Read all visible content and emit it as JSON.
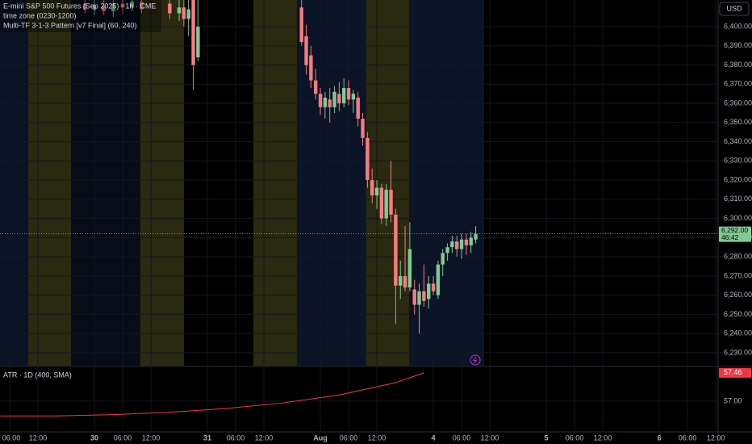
{
  "chart_data": [
    {
      "type": "candlestick",
      "title": "E-mini S&P 500 Futures (Sep 2025) · 1h · CME",
      "annotations": [
        "time zone (0230-1200)",
        "Multi-TF 3-1-3 Pattern [v7 Final] (60, 240)"
      ],
      "currency": "USD",
      "last_price": {
        "value": 6292,
        "label": "6,292.00"
      },
      "countdown": "46:42",
      "up_color": "#81c995",
      "down_color": "#f77c80",
      "grid": true,
      "xlim": [
        3.94,
        156.5
      ],
      "xticks": [
        {
          "value": 6,
          "label": "06:00"
        },
        {
          "value": 12,
          "label": "12:00"
        },
        {
          "value": 24,
          "label": "30"
        },
        {
          "value": 30,
          "label": "06:00"
        },
        {
          "value": 36,
          "label": "12:00"
        },
        {
          "value": 48,
          "label": "31"
        },
        {
          "value": 54,
          "label": "06:00"
        },
        {
          "value": 60,
          "label": "12:00"
        },
        {
          "value": 72,
          "label": "Aug"
        },
        {
          "value": 78,
          "label": "06:00"
        },
        {
          "value": 84,
          "label": "12:00"
        },
        {
          "value": 96,
          "label": "4"
        },
        {
          "value": 102,
          "label": "06:00"
        },
        {
          "value": 108,
          "label": "12:00"
        },
        {
          "value": 120,
          "label": "5"
        },
        {
          "value": 126,
          "label": "06:00"
        },
        {
          "value": 132,
          "label": "12:00"
        },
        {
          "value": 144,
          "label": "6"
        },
        {
          "value": 150,
          "label": "06:00"
        },
        {
          "value": 156,
          "label": "12:00"
        }
      ],
      "ylim": [
        6223.23,
        6413.89
      ],
      "yticks": [
        {
          "value": 6230,
          "label": "6,230.00"
        },
        {
          "value": 6240,
          "label": "6,240.00"
        },
        {
          "value": 6250,
          "label": "6,250.00"
        },
        {
          "value": 6260,
          "label": "6,260.00"
        },
        {
          "value": 6270,
          "label": "6,270.00"
        },
        {
          "value": 6280,
          "label": "6,280.00"
        },
        {
          "value": 6290,
          "label": "6,290.00"
        },
        {
          "value": 6300,
          "label": "6,300.00"
        },
        {
          "value": 6310,
          "label": "6,310.00"
        },
        {
          "value": 6320,
          "label": "6,320.00"
        },
        {
          "value": 6330,
          "label": "6,330.00"
        },
        {
          "value": 6340,
          "label": "6,340.00"
        },
        {
          "value": 6350,
          "label": "6,350.00"
        },
        {
          "value": 6360,
          "label": "6,360.00"
        },
        {
          "value": 6370,
          "label": "6,370.00"
        },
        {
          "value": 6380,
          "label": "6,380.00"
        },
        {
          "value": 6390,
          "label": "6,390.00"
        },
        {
          "value": 6400,
          "label": "6,400.00"
        }
      ],
      "x": [
        22,
        24,
        26,
        28,
        30,
        32,
        34,
        40,
        42,
        43,
        44,
        45,
        46,
        68,
        69,
        70,
        71,
        72,
        73,
        74,
        75,
        76,
        77,
        78,
        79,
        80,
        81,
        82,
        83,
        84,
        85,
        86,
        87,
        88,
        89,
        90,
        91,
        92,
        93,
        94,
        95,
        96,
        97,
        98,
        99,
        100,
        101,
        102,
        103,
        104,
        105
      ],
      "open": [
        6412,
        6409,
        6411,
        6408,
        6412,
        6410,
        6413,
        6412,
        6407,
        6410,
        6404,
        6414,
        6384,
        6410,
        6395,
        6385,
        6372,
        6365,
        6358,
        6362,
        6358,
        6365,
        6360,
        6368,
        6362,
        6363,
        6352,
        6342,
        6320,
        6312,
        6316,
        6300,
        6315,
        6302,
        6265,
        6270,
        6264,
        6263,
        6255,
        6262,
        6258,
        6266,
        6260,
        6276,
        6282,
        6285,
        6288,
        6284,
        6289,
        6286,
        6289
      ],
      "high": [
        6416,
        6414,
        6415,
        6416,
        6416,
        6417,
        6417,
        6418,
        6415,
        6414,
        6416,
        6418,
        6420,
        6414,
        6401,
        6390,
        6378,
        6368,
        6366,
        6368,
        6369,
        6371,
        6373,
        6372,
        6367,
        6366,
        6355,
        6345,
        6326,
        6320,
        6318,
        6318,
        6330,
        6305,
        6278,
        6296,
        6298,
        6268,
        6266,
        6276,
        6270,
        6270,
        6278,
        6284,
        6287,
        6291,
        6291,
        6292,
        6292,
        6293,
        6296
      ],
      "low": [
        6407,
        6406,
        6406,
        6405,
        6407,
        6408,
        6407,
        6404,
        6403,
        6400,
        6395,
        6367,
        6382,
        6390,
        6375,
        6368,
        6362,
        6354,
        6352,
        6350,
        6355,
        6356,
        6358,
        6359,
        6355,
        6348,
        6338,
        6316,
        6308,
        6305,
        6297,
        6296,
        6298,
        6245,
        6258,
        6262,
        6262,
        6250,
        6240,
        6254,
        6253,
        6260,
        6258,
        6270,
        6278,
        6282,
        6280,
        6279,
        6281,
        6282,
        6287
      ],
      "close": [
        6409,
        6411,
        6408,
        6412,
        6410,
        6413,
        6409,
        6407,
        6410,
        6404,
        6409,
        6380,
        6400,
        6392,
        6380,
        6372,
        6365,
        6358,
        6363,
        6358,
        6366,
        6360,
        6368,
        6362,
        6365,
        6352,
        6342,
        6320,
        6312,
        6316,
        6300,
        6315,
        6302,
        6265,
        6270,
        6264,
        6284,
        6255,
        6262,
        6257,
        6266,
        6262,
        6276,
        6282,
        6285,
        6288,
        6284,
        6289,
        6286,
        6290,
        6292
      ]
    },
    {
      "type": "line",
      "title": "ATR · 1D (400, SMA)",
      "color": "#f23645",
      "x": [
        4,
        16,
        28,
        40,
        52,
        64,
        76,
        88,
        94
      ],
      "values": [
        56.76,
        56.76,
        56.78,
        56.82,
        56.88,
        56.97,
        57.1,
        57.3,
        57.46
      ],
      "ylim": [
        56.5,
        57.55
      ],
      "yticks": [
        {
          "value": 57,
          "label": "57.00"
        }
      ]
    }
  ]
}
